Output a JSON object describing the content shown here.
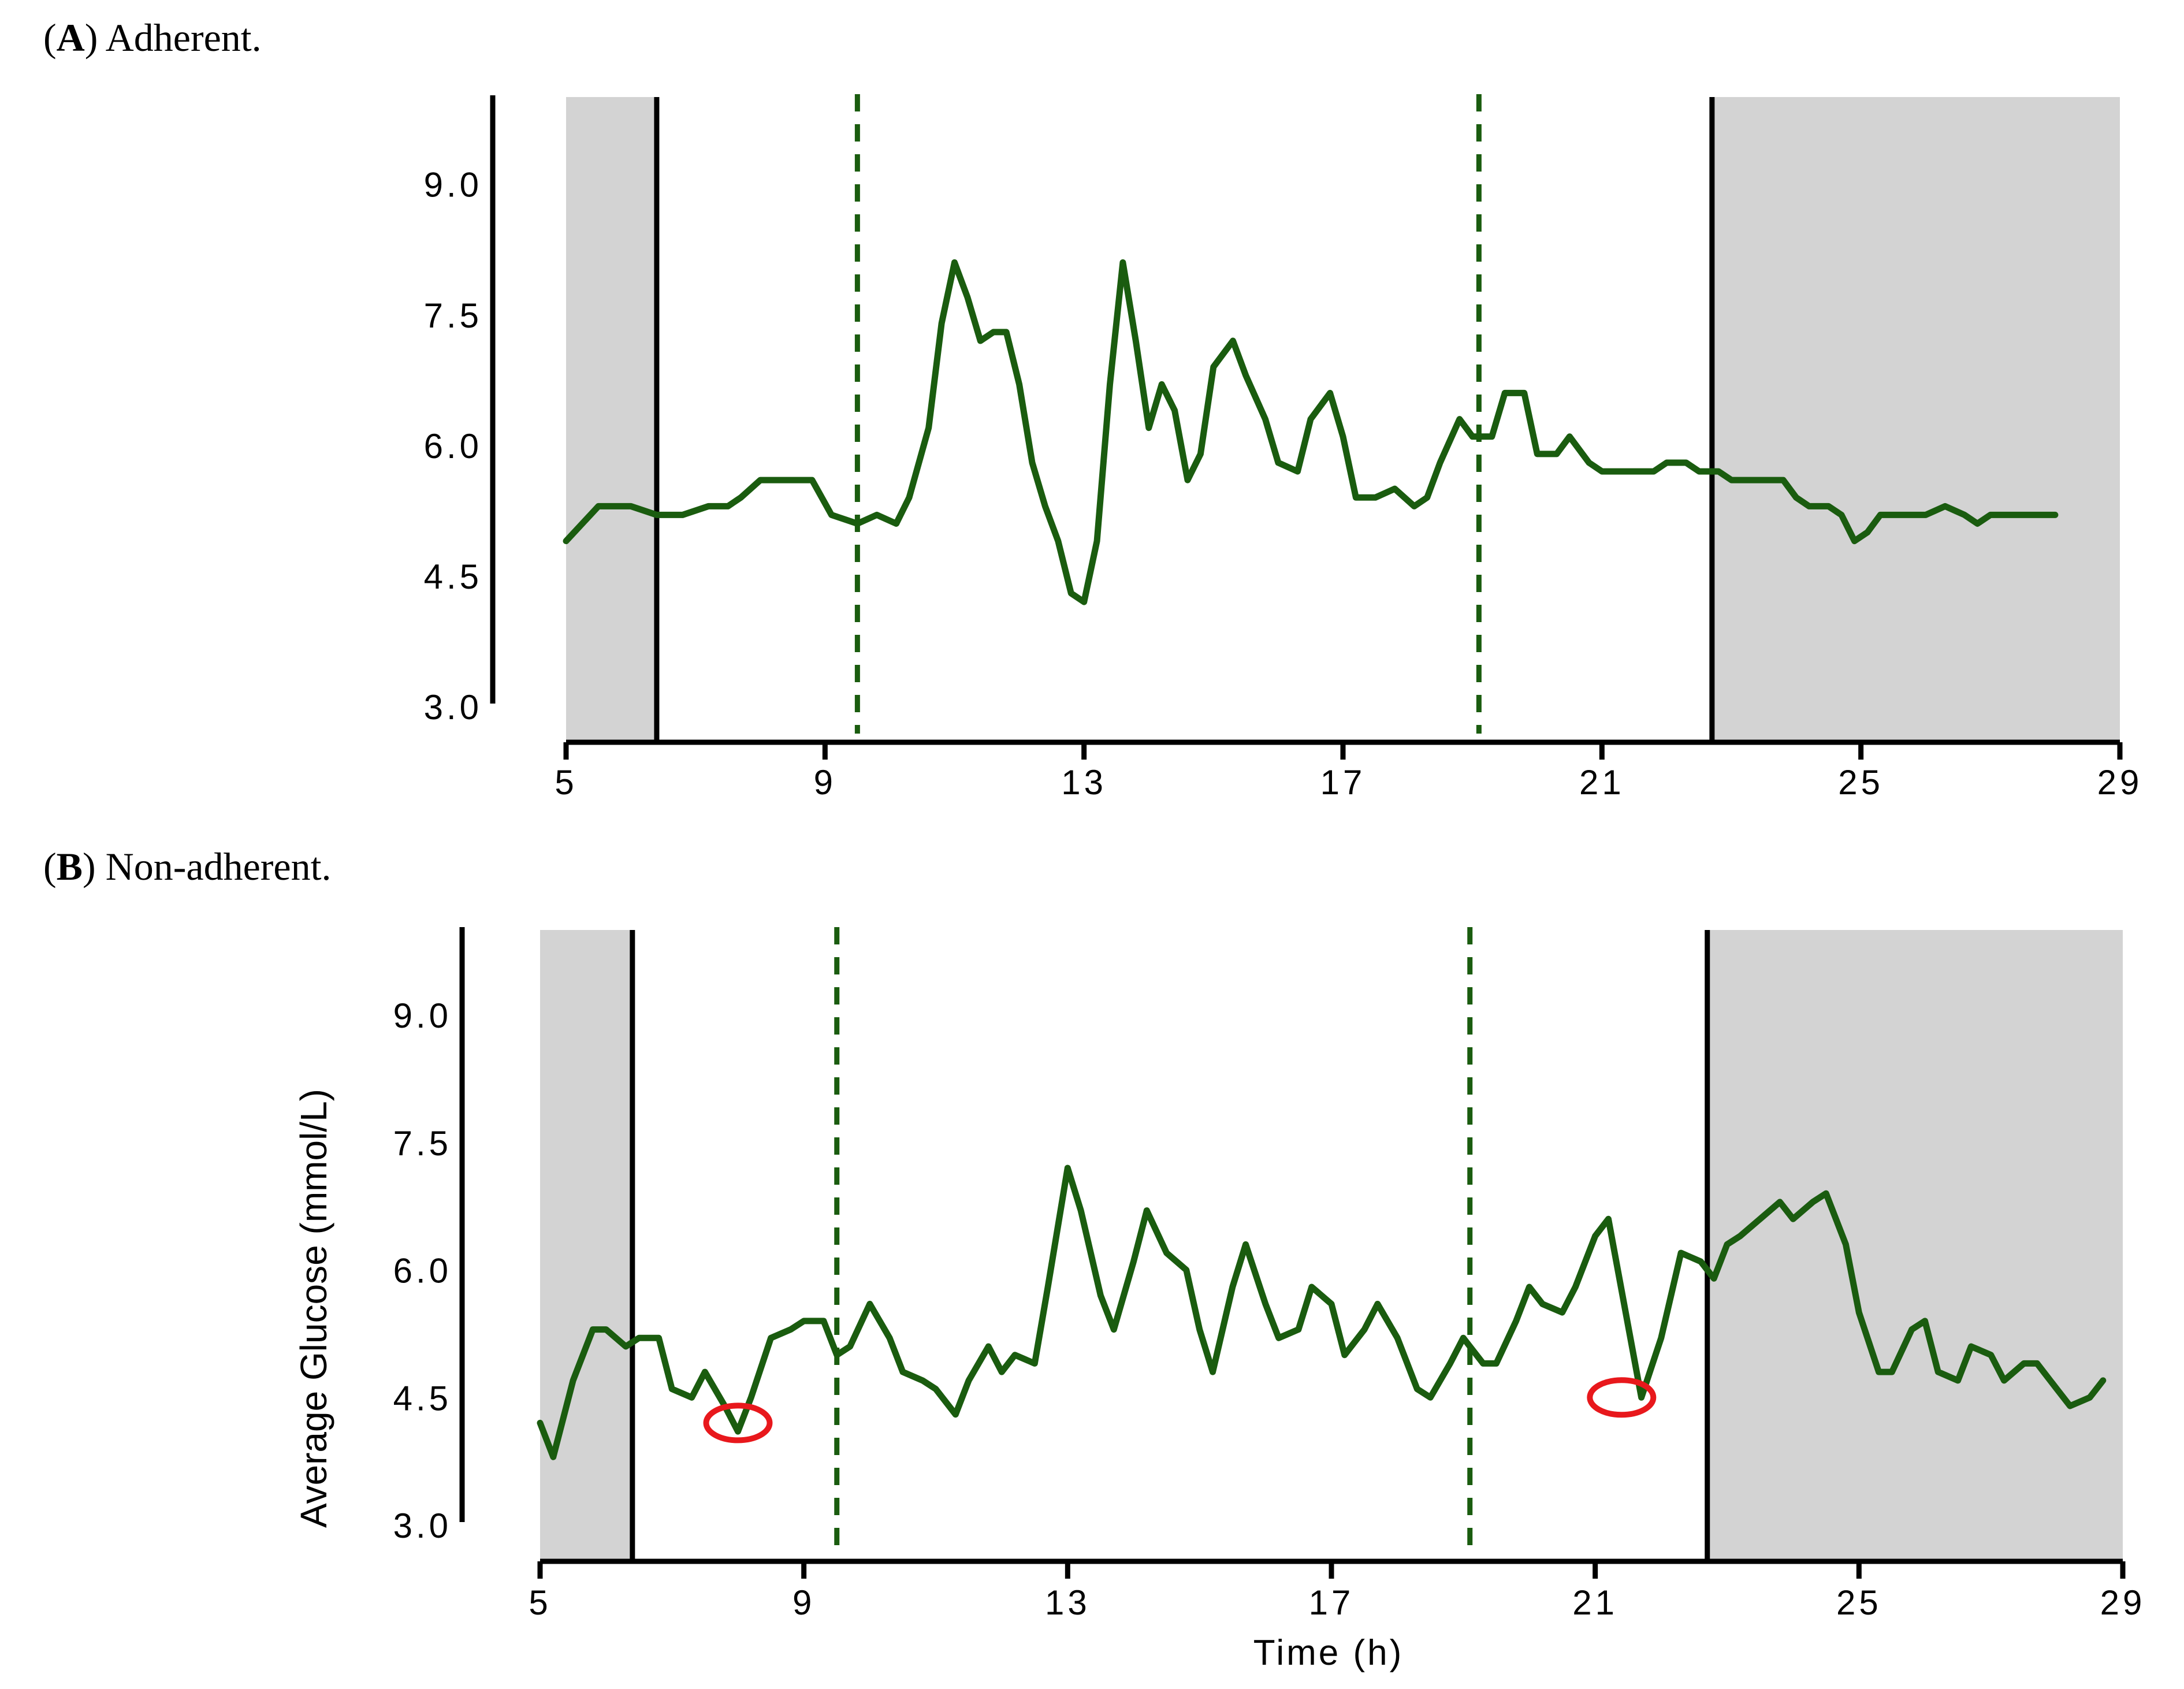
{
  "colors": {
    "line": "#1a5c0f",
    "shade": "#d3d3d3",
    "marker": "#e8181c",
    "axis": "#000000"
  },
  "chart_data": [
    {
      "type": "line",
      "panel_letter": "A",
      "panel_title": "Adherent.",
      "xlabel": "",
      "ylabel": "",
      "xlim": [
        5,
        29
      ],
      "ylim": [
        3.0,
        10.0
      ],
      "xticks": [
        "5",
        "9",
        "13",
        "17",
        "21",
        "25",
        "29"
      ],
      "yticks": [
        "3.0",
        "4.5",
        "6.0",
        "7.5",
        "9.0"
      ],
      "shaded_x_ranges": [
        [
          5,
          6.4
        ],
        [
          22.7,
          29
        ]
      ],
      "solid_vlines": [
        6.4,
        22.7
      ],
      "dashed_vlines": [
        9.5,
        19.1
      ],
      "markers": [],
      "series": [
        {
          "name": "Average Glucose",
          "points": [
            [
              5.0,
              4.9
            ],
            [
              5.5,
              5.3
            ],
            [
              6.0,
              5.3
            ],
            [
              6.4,
              5.2
            ],
            [
              6.8,
              5.2
            ],
            [
              7.2,
              5.3
            ],
            [
              7.5,
              5.3
            ],
            [
              7.7,
              5.4
            ],
            [
              8.0,
              5.6
            ],
            [
              8.5,
              5.6
            ],
            [
              8.8,
              5.6
            ],
            [
              9.1,
              5.2
            ],
            [
              9.5,
              5.1
            ],
            [
              9.8,
              5.2
            ],
            [
              10.1,
              5.1
            ],
            [
              10.3,
              5.4
            ],
            [
              10.6,
              6.2
            ],
            [
              10.8,
              7.4
            ],
            [
              11.0,
              8.1
            ],
            [
              11.2,
              7.7
            ],
            [
              11.4,
              7.2
            ],
            [
              11.6,
              7.3
            ],
            [
              11.8,
              7.3
            ],
            [
              12.0,
              6.7
            ],
            [
              12.2,
              5.8
            ],
            [
              12.4,
              5.3
            ],
            [
              12.6,
              4.9
            ],
            [
              12.8,
              4.3
            ],
            [
              13.0,
              4.2
            ],
            [
              13.2,
              4.9
            ],
            [
              13.4,
              6.7
            ],
            [
              13.6,
              8.1
            ],
            [
              13.8,
              7.2
            ],
            [
              14.0,
              6.2
            ],
            [
              14.2,
              6.7
            ],
            [
              14.4,
              6.4
            ],
            [
              14.6,
              5.6
            ],
            [
              14.8,
              5.9
            ],
            [
              15.0,
              6.9
            ],
            [
              15.3,
              7.2
            ],
            [
              15.5,
              6.8
            ],
            [
              15.8,
              6.3
            ],
            [
              16.0,
              5.8
            ],
            [
              16.3,
              5.7
            ],
            [
              16.5,
              6.3
            ],
            [
              16.8,
              6.6
            ],
            [
              17.0,
              6.1
            ],
            [
              17.2,
              5.4
            ],
            [
              17.5,
              5.4
            ],
            [
              17.8,
              5.5
            ],
            [
              18.1,
              5.3
            ],
            [
              18.3,
              5.4
            ],
            [
              18.5,
              5.8
            ],
            [
              18.8,
              6.3
            ],
            [
              19.0,
              6.1
            ],
            [
              19.3,
              6.1
            ],
            [
              19.5,
              6.6
            ],
            [
              19.8,
              6.6
            ],
            [
              20.0,
              5.9
            ],
            [
              20.3,
              5.9
            ],
            [
              20.5,
              6.1
            ],
            [
              20.8,
              5.8
            ],
            [
              21.0,
              5.7
            ],
            [
              21.5,
              5.7
            ],
            [
              21.8,
              5.7
            ],
            [
              22.0,
              5.8
            ],
            [
              22.3,
              5.8
            ],
            [
              22.5,
              5.7
            ],
            [
              22.8,
              5.7
            ],
            [
              23.0,
              5.6
            ],
            [
              23.5,
              5.6
            ],
            [
              23.8,
              5.6
            ],
            [
              24.0,
              5.4
            ],
            [
              24.2,
              5.3
            ],
            [
              24.5,
              5.3
            ],
            [
              24.7,
              5.2
            ],
            [
              24.9,
              4.9
            ],
            [
              25.1,
              5.0
            ],
            [
              25.3,
              5.2
            ],
            [
              25.8,
              5.2
            ],
            [
              26.0,
              5.2
            ],
            [
              26.3,
              5.3
            ],
            [
              26.6,
              5.2
            ],
            [
              26.8,
              5.1
            ],
            [
              27.0,
              5.2
            ],
            [
              27.3,
              5.2
            ],
            [
              28.0,
              5.2
            ]
          ]
        }
      ]
    },
    {
      "type": "line",
      "panel_letter": "B",
      "panel_title": "Non-adherent.",
      "xlabel": "Time (h)",
      "ylabel": "Average Glucose (mmol/L)",
      "xlim": [
        5,
        29
      ],
      "ylim": [
        3.0,
        10.0
      ],
      "xticks": [
        "5",
        "9",
        "13",
        "17",
        "21",
        "25",
        "29"
      ],
      "yticks": [
        "3.0",
        "4.5",
        "6.0",
        "7.5",
        "9.0"
      ],
      "shaded_x_ranges": [
        [
          5,
          6.4
        ],
        [
          22.7,
          29
        ]
      ],
      "solid_vlines": [
        6.4,
        22.7
      ],
      "dashed_vlines": [
        9.5,
        19.1
      ],
      "markers": [
        [
          8.0,
          4.2
        ],
        [
          21.4,
          4.5
        ]
      ],
      "series": [
        {
          "name": "Average Glucose",
          "points": [
            [
              5.0,
              4.2
            ],
            [
              5.2,
              3.8
            ],
            [
              5.5,
              4.7
            ],
            [
              5.8,
              5.3
            ],
            [
              6.0,
              5.3
            ],
            [
              6.3,
              5.1
            ],
            [
              6.5,
              5.2
            ],
            [
              6.8,
              5.2
            ],
            [
              7.0,
              4.6
            ],
            [
              7.3,
              4.5
            ],
            [
              7.5,
              4.8
            ],
            [
              7.8,
              4.4
            ],
            [
              8.0,
              4.1
            ],
            [
              8.2,
              4.5
            ],
            [
              8.5,
              5.2
            ],
            [
              8.8,
              5.3
            ],
            [
              9.0,
              5.4
            ],
            [
              9.3,
              5.4
            ],
            [
              9.5,
              5.0
            ],
            [
              9.7,
              5.1
            ],
            [
              10.0,
              5.6
            ],
            [
              10.3,
              5.2
            ],
            [
              10.5,
              4.8
            ],
            [
              10.8,
              4.7
            ],
            [
              11.0,
              4.6
            ],
            [
              11.3,
              4.3
            ],
            [
              11.5,
              4.7
            ],
            [
              11.8,
              5.1
            ],
            [
              12.0,
              4.8
            ],
            [
              12.2,
              5.0
            ],
            [
              12.5,
              4.9
            ],
            [
              12.7,
              5.8
            ],
            [
              13.0,
              7.2
            ],
            [
              13.2,
              6.7
            ],
            [
              13.5,
              5.7
            ],
            [
              13.7,
              5.3
            ],
            [
              14.0,
              6.1
            ],
            [
              14.2,
              6.7
            ],
            [
              14.5,
              6.2
            ],
            [
              14.8,
              6.0
            ],
            [
              15.0,
              5.3
            ],
            [
              15.2,
              4.8
            ],
            [
              15.5,
              5.8
            ],
            [
              15.7,
              6.3
            ],
            [
              16.0,
              5.6
            ],
            [
              16.2,
              5.2
            ],
            [
              16.5,
              5.3
            ],
            [
              16.7,
              5.8
            ],
            [
              17.0,
              5.6
            ],
            [
              17.2,
              5.0
            ],
            [
              17.5,
              5.3
            ],
            [
              17.7,
              5.6
            ],
            [
              18.0,
              5.2
            ],
            [
              18.3,
              4.6
            ],
            [
              18.5,
              4.5
            ],
            [
              18.8,
              4.9
            ],
            [
              19.0,
              5.2
            ],
            [
              19.3,
              4.9
            ],
            [
              19.5,
              4.9
            ],
            [
              19.8,
              5.4
            ],
            [
              20.0,
              5.8
            ],
            [
              20.2,
              5.6
            ],
            [
              20.5,
              5.5
            ],
            [
              20.7,
              5.8
            ],
            [
              21.0,
              6.4
            ],
            [
              21.2,
              6.6
            ],
            [
              21.7,
              4.5
            ],
            [
              22.0,
              5.2
            ],
            [
              22.3,
              6.2
            ],
            [
              22.6,
              6.1
            ],
            [
              22.8,
              5.9
            ],
            [
              23.0,
              6.3
            ],
            [
              23.2,
              6.4
            ],
            [
              23.5,
              6.6
            ],
            [
              23.8,
              6.8
            ],
            [
              24.0,
              6.6
            ],
            [
              24.3,
              6.8
            ],
            [
              24.5,
              6.9
            ],
            [
              24.8,
              6.3
            ],
            [
              25.0,
              5.5
            ],
            [
              25.3,
              4.8
            ],
            [
              25.5,
              4.8
            ],
            [
              25.8,
              5.3
            ],
            [
              26.0,
              5.4
            ],
            [
              26.2,
              4.8
            ],
            [
              26.5,
              4.7
            ],
            [
              26.7,
              5.1
            ],
            [
              27.0,
              5.0
            ],
            [
              27.2,
              4.7
            ],
            [
              27.5,
              4.9
            ],
            [
              27.7,
              4.9
            ],
            [
              28.0,
              4.6
            ],
            [
              28.2,
              4.4
            ],
            [
              28.5,
              4.5
            ],
            [
              28.7,
              4.7
            ]
          ]
        }
      ]
    }
  ]
}
